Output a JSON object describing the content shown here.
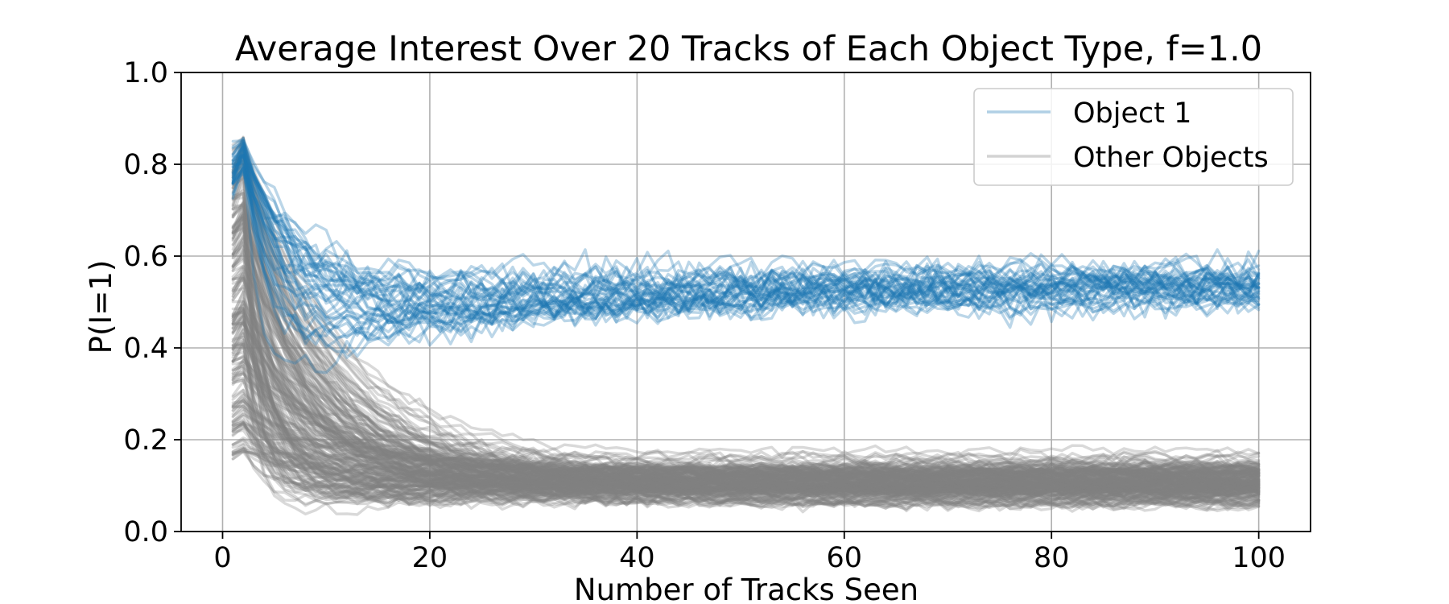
{
  "chart_data": {
    "type": "line",
    "title": "Average Interest Over 20 Tracks of Each Object Type, f=1.0",
    "xlabel": "Number of Tracks Seen",
    "ylabel": "P(I=1)",
    "xlim": [
      -4,
      105
    ],
    "ylim": [
      0.0,
      1.0
    ],
    "xticks": [
      0,
      20,
      40,
      60,
      80,
      100
    ],
    "xtick_labels": [
      "0",
      "20",
      "40",
      "60",
      "80",
      "100"
    ],
    "yticks": [
      0.0,
      0.2,
      0.4,
      0.6,
      0.8,
      1.0
    ],
    "ytick_labels": [
      "0.0",
      "0.2",
      "0.4",
      "0.6",
      "0.8",
      "1.0"
    ],
    "grid": true,
    "legend_position": "top-right",
    "x_range": [
      1,
      100
    ],
    "series": [
      {
        "name": "Object 1",
        "color": "#1f77b4",
        "alpha": 0.3,
        "trace_count": 40,
        "peak_range": [
          0.78,
          0.86
        ],
        "min_range": [
          0.3,
          0.46
        ],
        "steady_state_range": [
          0.4,
          0.65
        ],
        "steady_state_mean": 0.53
      },
      {
        "name": "Other Objects",
        "color": "#808080",
        "alpha": 0.3,
        "trace_count": 200,
        "peak_range": [
          0.17,
          0.86
        ],
        "min_range": [
          0.02,
          0.2
        ],
        "steady_state_range": [
          0.04,
          0.27
        ],
        "steady_state_mean": 0.11
      }
    ]
  }
}
